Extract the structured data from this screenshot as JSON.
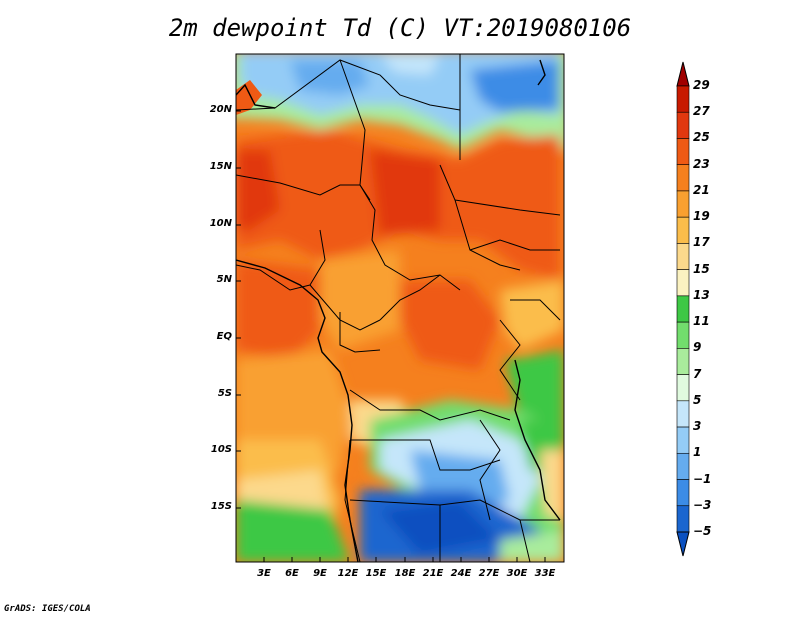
{
  "title": "2m dewpoint Td (C) VT:2019080106",
  "credit": "GrADS: IGES/COLA",
  "map": {
    "lat_ticks": [
      "20N",
      "15N",
      "10N",
      "5N",
      "EQ",
      "5S",
      "10S",
      "15S"
    ],
    "lon_ticks": [
      "3E",
      "6E",
      "9E",
      "12E",
      "15E",
      "18E",
      "21E",
      "24E",
      "27E",
      "30E",
      "33E"
    ]
  },
  "colorbar": {
    "labels": [
      "29",
      "27",
      "25",
      "23",
      "21",
      "19",
      "17",
      "15",
      "13",
      "11",
      "9",
      "7",
      "5",
      "3",
      "1",
      "−1",
      "−3",
      "−5"
    ],
    "colors": [
      "#a00000",
      "#c81a00",
      "#e1380f",
      "#ef5a14",
      "#f5801e",
      "#f9a030",
      "#fbbd4b",
      "#fcd98c",
      "#fbf2c1",
      "#3ec845",
      "#72dd6d",
      "#a9ec9c",
      "#e0fadf",
      "#c5e6fa",
      "#94ccf6",
      "#65acef",
      "#3c8ce6",
      "#1b66cf",
      "#0a50c0"
    ]
  }
}
